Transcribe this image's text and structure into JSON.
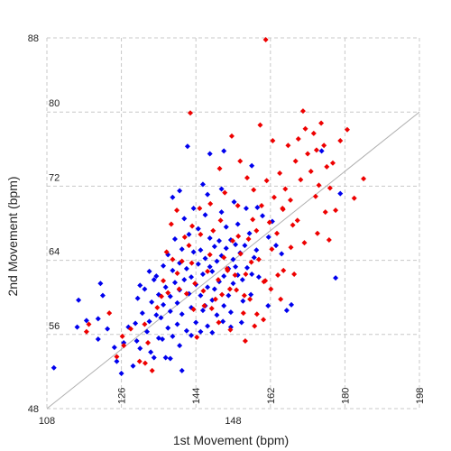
{
  "chart_data": {
    "type": "scatter",
    "xlabel": "1st Movement (bpm)",
    "ylabel": "2nd Movement (bpm)",
    "x_primary_ticks": [
      108,
      148
    ],
    "x_secondary_ticks": [
      126,
      144,
      162,
      180,
      198
    ],
    "x_secondary_range": [
      108,
      198
    ],
    "y_primary_ticks": [
      48,
      88
    ],
    "y_secondary_ticks": [
      56,
      64,
      72,
      80
    ],
    "y_secondary_range": [
      48,
      88
    ],
    "xlim": [
      108,
      188
    ],
    "ylim": [
      48,
      88
    ],
    "grid": true,
    "reference_line": {
      "from": [
        108,
        48
      ],
      "to": [
        188,
        80
      ]
    },
    "series": [
      {
        "color": "#0000ee",
        "points": [
          [
            109.5,
            52.4
          ],
          [
            114.5,
            56.8
          ],
          [
            116.5,
            57.5
          ],
          [
            114.8,
            59.7
          ],
          [
            119,
            55.5
          ],
          [
            119,
            57.7
          ],
          [
            119.5,
            61.5
          ],
          [
            120,
            60.2
          ],
          [
            121,
            56.6
          ],
          [
            122.5,
            54.6
          ],
          [
            123,
            53.1
          ],
          [
            124,
            51.8
          ],
          [
            124.5,
            55.1
          ],
          [
            125.5,
            56.8
          ],
          [
            126.5,
            52.6
          ],
          [
            127,
            57.2
          ],
          [
            127.5,
            59.9
          ],
          [
            128,
            61.3
          ],
          [
            128.5,
            58.3
          ],
          [
            129,
            60.9
          ],
          [
            129.5,
            56.3
          ],
          [
            130,
            62.8
          ],
          [
            130,
            57.4
          ],
          [
            130.5,
            59.5
          ],
          [
            131,
            61.9
          ],
          [
            131.5,
            58.1
          ],
          [
            131.5,
            62.3
          ],
          [
            132,
            55.6
          ],
          [
            132,
            60.3
          ],
          [
            132.5,
            57.8
          ],
          [
            133,
            63.4
          ],
          [
            133,
            59.2
          ],
          [
            133.5,
            53.5
          ],
          [
            133.5,
            61.1
          ],
          [
            134,
            56.7
          ],
          [
            134,
            64.6
          ],
          [
            134.5,
            60.1
          ],
          [
            134.5,
            58.5
          ],
          [
            135,
            62.9
          ],
          [
            135,
            55.8
          ],
          [
            135.5,
            66.3
          ],
          [
            135.5,
            61.6
          ],
          [
            136,
            59.4
          ],
          [
            136,
            57.1
          ],
          [
            136.5,
            63.7
          ],
          [
            136.5,
            60.8
          ],
          [
            137,
            65.2
          ],
          [
            137,
            58.2
          ],
          [
            137.5,
            61.9
          ],
          [
            137.5,
            68.5
          ],
          [
            138,
            63.1
          ],
          [
            138,
            56.4
          ],
          [
            138.5,
            60.4
          ],
          [
            138.5,
            66.8
          ],
          [
            139,
            62.2
          ],
          [
            139,
            58.9
          ],
          [
            139.5,
            64.9
          ],
          [
            139.5,
            69.6
          ],
          [
            140,
            61.4
          ],
          [
            140,
            57.3
          ],
          [
            140.5,
            63.6
          ],
          [
            140.5,
            67.4
          ],
          [
            141,
            60.2
          ],
          [
            141,
            65.1
          ],
          [
            141.5,
            62.5
          ],
          [
            141.5,
            58.6
          ],
          [
            142,
            64.2
          ],
          [
            142,
            68.9
          ],
          [
            142.5,
            61.1
          ],
          [
            142.5,
            56.9
          ],
          [
            143,
            63.3
          ],
          [
            143,
            66.4
          ],
          [
            143.5,
            59.7
          ],
          [
            143.5,
            62.8
          ],
          [
            144,
            65.5
          ],
          [
            144,
            60.9
          ],
          [
            144.5,
            63.9
          ],
          [
            144.5,
            58.1
          ],
          [
            145,
            66.1
          ],
          [
            145,
            61.7
          ],
          [
            145.5,
            64.5
          ],
          [
            145.5,
            69.2
          ],
          [
            146,
            62.3
          ],
          [
            146,
            59.1
          ],
          [
            146.5,
            65.3
          ],
          [
            146.5,
            67.6
          ],
          [
            147,
            63.1
          ],
          [
            147,
            60.2
          ],
          [
            147.5,
            66.2
          ],
          [
            147.5,
            58.4
          ],
          [
            148,
            64.1
          ],
          [
            148,
            61.5
          ],
          [
            148.5,
            65.7
          ],
          [
            148.5,
            63.3
          ],
          [
            149,
            62.4
          ],
          [
            149,
            67.9
          ],
          [
            149.5,
            64.8
          ],
          [
            150,
            61.9
          ],
          [
            150.5,
            65.6
          ],
          [
            151,
            63.2
          ],
          [
            151.5,
            66.9
          ],
          [
            152,
            62.5
          ],
          [
            152.5,
            64.3
          ],
          [
            153,
            65.1
          ],
          [
            128,
            54.5
          ],
          [
            131,
            53.5
          ],
          [
            134.5,
            53.4
          ],
          [
            137,
            52.1
          ],
          [
            135,
            70.8
          ],
          [
            136.5,
            71.5
          ],
          [
            142.5,
            71.1
          ],
          [
            145.5,
            71.7
          ],
          [
            141.5,
            72.2
          ],
          [
            143,
            75.5
          ],
          [
            146,
            75.8
          ],
          [
            152,
            74.2
          ],
          [
            167,
            75.8
          ],
          [
            171,
            71.2
          ],
          [
            170,
            62.1
          ],
          [
            159.5,
            58.6
          ],
          [
            160.5,
            59.2
          ],
          [
            155.5,
            59.1
          ],
          [
            138.2,
            76.3
          ],
          [
            139,
            55.9
          ],
          [
            141,
            56.3
          ],
          [
            142,
            59.1
          ],
          [
            143.5,
            56.2
          ],
          [
            145.8,
            57.4
          ],
          [
            147.5,
            56.8
          ],
          [
            149.8,
            57.3
          ],
          [
            136.5,
            54.8
          ],
          [
            132.8,
            55.5
          ],
          [
            130.3,
            54.1
          ],
          [
            127.3,
            55.3
          ],
          [
            148.2,
            70.3
          ],
          [
            150.8,
            69.6
          ],
          [
            153.2,
            69.7
          ],
          [
            154.3,
            68.8
          ],
          [
            156.4,
            68.2
          ],
          [
            155.6,
            66.5
          ],
          [
            157.2,
            65.6
          ],
          [
            158.4,
            64.7
          ],
          [
            153.5,
            62.2
          ],
          [
            151.8,
            60.3
          ],
          [
            150.1,
            59.6
          ]
        ]
      },
      {
        "color": "#ee0000",
        "points": [
          [
            116.5,
            56.3
          ],
          [
            117,
            57.1
          ],
          [
            123,
            53.6
          ],
          [
            124.5,
            54.8
          ],
          [
            126,
            56.6
          ],
          [
            129,
            57.1
          ],
          [
            133,
            61.8
          ],
          [
            134,
            60.5
          ],
          [
            135,
            64.1
          ],
          [
            136,
            62.6
          ],
          [
            137,
            63.9
          ],
          [
            138,
            60.4
          ],
          [
            138.5,
            65.6
          ],
          [
            139.2,
            67.7
          ],
          [
            139.8,
            61.5
          ],
          [
            140.2,
            55.7
          ],
          [
            141,
            66.8
          ],
          [
            141.8,
            59.1
          ],
          [
            142.5,
            62.8
          ],
          [
            143,
            64.6
          ],
          [
            143.7,
            67.2
          ],
          [
            144.2,
            59.8
          ],
          [
            144.8,
            61.9
          ],
          [
            145.3,
            68.3
          ],
          [
            146,
            64.3
          ],
          [
            146.7,
            63.1
          ],
          [
            147.3,
            60.9
          ],
          [
            147.9,
            66.1
          ],
          [
            148.4,
            62.4
          ],
          [
            149,
            69.9
          ],
          [
            149.6,
            64.7
          ],
          [
            150.2,
            58.3
          ],
          [
            150.7,
            62.5
          ],
          [
            151.3,
            66.3
          ],
          [
            151.9,
            63.8
          ],
          [
            152.4,
            71.6
          ],
          [
            153,
            67.2
          ],
          [
            153.5,
            64.1
          ],
          [
            154.1,
            69.9
          ],
          [
            154.6,
            61.7
          ],
          [
            155.2,
            72.6
          ],
          [
            155.8,
            68.1
          ],
          [
            156.3,
            65.2
          ],
          [
            156.8,
            70.8
          ],
          [
            157.4,
            66.9
          ],
          [
            158,
            73.4
          ],
          [
            158.6,
            69.6
          ],
          [
            159.2,
            71.7
          ],
          [
            159.8,
            76.4
          ],
          [
            160.3,
            70.5
          ],
          [
            160.8,
            67.8
          ],
          [
            161.4,
            74.7
          ],
          [
            162,
            77.1
          ],
          [
            162.5,
            72.7
          ],
          [
            163,
            80.1
          ],
          [
            163.5,
            78.2
          ],
          [
            164,
            75.5
          ],
          [
            164.7,
            73.6
          ],
          [
            165.3,
            77.7
          ],
          [
            165.9,
            75.9
          ],
          [
            166.4,
            72.1
          ],
          [
            166.9,
            78.8
          ],
          [
            167.5,
            76.4
          ],
          [
            168.1,
            74.1
          ],
          [
            168.8,
            71.8
          ],
          [
            169.4,
            74.5
          ],
          [
            170,
            69.4
          ],
          [
            171,
            76.9
          ],
          [
            172.5,
            78.1
          ],
          [
            174,
            70.7
          ],
          [
            176,
            72.8
          ],
          [
            155,
            87.8
          ],
          [
            138.8,
            79.9
          ],
          [
            149.5,
            74.7
          ],
          [
            151,
            72.9
          ],
          [
            152.2,
            68.4
          ],
          [
            146.8,
            62.9
          ],
          [
            143.4,
            58.8
          ],
          [
            144.9,
            57.3
          ],
          [
            147.4,
            56.5
          ],
          [
            153.1,
            58.2
          ],
          [
            131.7,
            58.9
          ],
          [
            132.6,
            60.1
          ],
          [
            136.4,
            60.9
          ],
          [
            139.5,
            58.7
          ],
          [
            141.6,
            60.7
          ],
          [
            145.6,
            60.3
          ],
          [
            148.7,
            60.8
          ],
          [
            150.4,
            60.2
          ],
          [
            151.6,
            59.8
          ],
          [
            156.1,
            60.9
          ],
          [
            154.9,
            61.8
          ],
          [
            157.6,
            62.4
          ],
          [
            158.8,
            62.9
          ],
          [
            145.1,
            73.9
          ],
          [
            147.7,
            77.4
          ],
          [
            156.5,
            76.9
          ],
          [
            153.8,
            78.6
          ],
          [
            160.4,
            65.4
          ],
          [
            165.7,
            70.9
          ],
          [
            167.8,
            69.2
          ],
          [
            161.8,
            68.3
          ],
          [
            158.7,
            69.5
          ],
          [
            149.1,
            66.6
          ],
          [
            140.8,
            69.6
          ],
          [
            139.1,
            63.7
          ],
          [
            137.6,
            66.5
          ],
          [
            134.7,
            67.9
          ],
          [
            133.7,
            64.9
          ],
          [
            129.7,
            55.1
          ],
          [
            127.9,
            53.1
          ],
          [
            130.6,
            52.1
          ],
          [
            124.2,
            55.8
          ],
          [
            121.4,
            58.3
          ],
          [
            129.1,
            52.9
          ],
          [
            135.9,
            69.4
          ],
          [
            143.1,
            70.1
          ],
          [
            146.2,
            71.3
          ],
          [
            150.6,
            55.3
          ],
          [
            152.6,
            56.9
          ],
          [
            154.5,
            57.6
          ],
          [
            158.2,
            59.8
          ],
          [
            161.1,
            62.5
          ],
          [
            163.3,
            65.9
          ],
          [
            166.1,
            66.9
          ],
          [
            168.6,
            66.2
          ]
        ]
      }
    ]
  }
}
